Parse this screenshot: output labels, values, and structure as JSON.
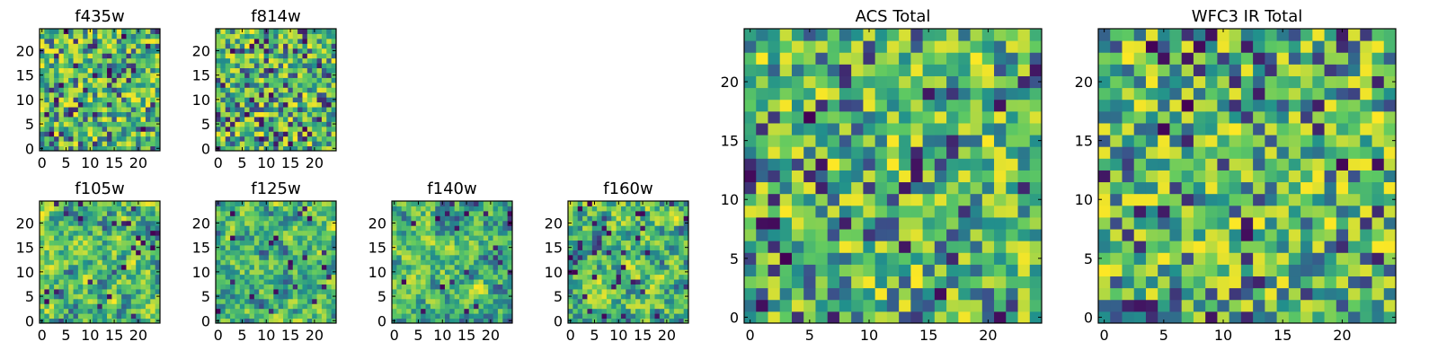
{
  "figure": {
    "background": "#ffffff"
  },
  "colormap": {
    "name": "viridis",
    "stops": [
      "#440154",
      "#3b528b",
      "#21918c",
      "#5ec962",
      "#fde725"
    ]
  },
  "chart_data": [
    {
      "type": "heatmap",
      "title": "f435w",
      "xlabel": "",
      "ylabel": "",
      "shape": [
        25,
        25
      ],
      "xlim": [
        0,
        24
      ],
      "ylim": [
        0,
        24
      ],
      "xticks": [
        0,
        5,
        10,
        15,
        20
      ],
      "yticks": [
        0,
        5,
        10,
        15,
        20
      ],
      "xtick_labels": [
        "0",
        "5",
        "10",
        "15",
        "20"
      ],
      "ytick_labels": [
        "0",
        "5",
        "10",
        "15",
        "20"
      ],
      "colormap": "viridis",
      "seed": 11,
      "texture": 0.0
    },
    {
      "type": "heatmap",
      "title": "f814w",
      "xlabel": "",
      "ylabel": "",
      "shape": [
        25,
        25
      ],
      "xlim": [
        0,
        24
      ],
      "ylim": [
        0,
        24
      ],
      "xticks": [
        0,
        5,
        10,
        15,
        20
      ],
      "yticks": [
        0,
        5,
        10,
        15,
        20
      ],
      "xtick_labels": [
        "0",
        "5",
        "10",
        "15",
        "20"
      ],
      "ytick_labels": [
        "0",
        "5",
        "10",
        "15",
        "20"
      ],
      "colormap": "viridis",
      "seed": 23,
      "texture": 0.0
    },
    {
      "type": "heatmap",
      "title": "f105w",
      "xlabel": "",
      "ylabel": "",
      "shape": [
        25,
        25
      ],
      "xlim": [
        0,
        24
      ],
      "ylim": [
        0,
        24
      ],
      "xticks": [
        0,
        5,
        10,
        15,
        20
      ],
      "yticks": [
        0,
        5,
        10,
        15,
        20
      ],
      "xtick_labels": [
        "0",
        "5",
        "10",
        "15",
        "20"
      ],
      "ytick_labels": [
        "0",
        "5",
        "10",
        "15",
        "20"
      ],
      "colormap": "viridis",
      "seed": 37,
      "texture": 0.6
    },
    {
      "type": "heatmap",
      "title": "f125w",
      "xlabel": "",
      "ylabel": "",
      "shape": [
        25,
        25
      ],
      "xlim": [
        0,
        24
      ],
      "ylim": [
        0,
        24
      ],
      "xticks": [
        0,
        5,
        10,
        15,
        20
      ],
      "yticks": [
        0,
        5,
        10,
        15,
        20
      ],
      "xtick_labels": [
        "0",
        "5",
        "10",
        "15",
        "20"
      ],
      "ytick_labels": [
        "0",
        "5",
        "10",
        "15",
        "20"
      ],
      "colormap": "viridis",
      "seed": 41,
      "texture": 0.6
    },
    {
      "type": "heatmap",
      "title": "f140w",
      "xlabel": "",
      "ylabel": "",
      "shape": [
        25,
        25
      ],
      "xlim": [
        0,
        24
      ],
      "ylim": [
        0,
        24
      ],
      "xticks": [
        0,
        5,
        10,
        15,
        20
      ],
      "yticks": [
        0,
        5,
        10,
        15,
        20
      ],
      "xtick_labels": [
        "0",
        "5",
        "10",
        "15",
        "20"
      ],
      "ytick_labels": [
        "0",
        "5",
        "10",
        "15",
        "20"
      ],
      "colormap": "viridis",
      "seed": 53,
      "texture": 0.6
    },
    {
      "type": "heatmap",
      "title": "f160w",
      "xlabel": "",
      "ylabel": "",
      "shape": [
        25,
        25
      ],
      "xlim": [
        0,
        24
      ],
      "ylim": [
        0,
        24
      ],
      "xticks": [
        0,
        5,
        10,
        15,
        20
      ],
      "yticks": [
        0,
        5,
        10,
        15,
        20
      ],
      "xtick_labels": [
        "0",
        "5",
        "10",
        "15",
        "20"
      ],
      "ytick_labels": [
        "0",
        "5",
        "10",
        "15",
        "20"
      ],
      "colormap": "viridis",
      "seed": 67,
      "texture": 0.6
    },
    {
      "type": "heatmap",
      "title": "ACS Total",
      "xlabel": "",
      "ylabel": "",
      "shape": [
        25,
        25
      ],
      "xlim": [
        0,
        24
      ],
      "ylim": [
        0,
        24
      ],
      "xticks": [
        0,
        5,
        10,
        15,
        20
      ],
      "yticks": [
        0,
        5,
        10,
        15,
        20
      ],
      "xtick_labels": [
        "0",
        "5",
        "10",
        "15",
        "20"
      ],
      "ytick_labels": [
        "0",
        "5",
        "10",
        "15",
        "20"
      ],
      "colormap": "viridis",
      "seed": 79,
      "texture": 0.0
    },
    {
      "type": "heatmap",
      "title": "WFC3 IR Total",
      "xlabel": "",
      "ylabel": "",
      "shape": [
        25,
        25
      ],
      "xlim": [
        0,
        24
      ],
      "ylim": [
        0,
        24
      ],
      "xticks": [
        0,
        5,
        10,
        15,
        20
      ],
      "yticks": [
        0,
        5,
        10,
        15,
        20
      ],
      "xtick_labels": [
        "0",
        "5",
        "10",
        "15",
        "20"
      ],
      "ytick_labels": [
        "0",
        "5",
        "10",
        "15",
        "20"
      ],
      "colormap": "viridis",
      "seed": 97,
      "texture": 0.0
    }
  ]
}
